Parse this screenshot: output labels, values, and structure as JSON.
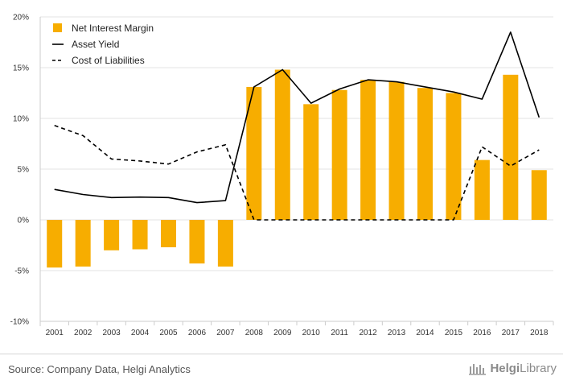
{
  "chart_data": {
    "type": "bar",
    "categories": [
      "2001",
      "2002",
      "2003",
      "2004",
      "2005",
      "2006",
      "2007",
      "2008",
      "2009",
      "2010",
      "2011",
      "2012",
      "2013",
      "2014",
      "2015",
      "2016",
      "2017",
      "2018"
    ],
    "ylim": [
      -10,
      20
    ],
    "yticks": [
      -10,
      -5,
      0,
      5,
      10,
      15,
      20
    ],
    "ytick_labels": [
      "-10%",
      "-5%",
      "0%",
      "5%",
      "10%",
      "15%",
      "20%"
    ],
    "grid": true,
    "legend_position": "top-left",
    "series": [
      {
        "name": "Net Interest Margin",
        "kind": "bar",
        "color": "#F7AD00",
        "values": [
          -4.7,
          -4.6,
          -3.0,
          -2.9,
          -2.7,
          -4.3,
          -4.6,
          13.1,
          14.8,
          11.4,
          12.8,
          13.8,
          13.6,
          13.0,
          12.5,
          5.9,
          14.3,
          4.9
        ]
      },
      {
        "name": "Asset Yield",
        "kind": "line",
        "style": "solid",
        "color": "#000000",
        "values": [
          3.0,
          2.5,
          2.2,
          2.25,
          2.2,
          1.7,
          1.9,
          13.1,
          14.8,
          11.5,
          12.9,
          13.8,
          13.6,
          13.1,
          12.6,
          11.9,
          18.5,
          10.1
        ]
      },
      {
        "name": "Cost of Liabilities",
        "kind": "line",
        "style": "dashed",
        "color": "#000000",
        "values": [
          9.3,
          8.3,
          6.0,
          5.8,
          5.5,
          6.7,
          7.4,
          0.0,
          0.0,
          0.0,
          0.0,
          0.0,
          0.0,
          0.0,
          0.0,
          7.2,
          5.3,
          6.9
        ]
      }
    ]
  },
  "footer": {
    "source": "Source: Company Data, Helgi Analytics",
    "logo_text_1": "Helgi",
    "logo_text_2": "Library",
    "logo_icon": "library-icon"
  }
}
